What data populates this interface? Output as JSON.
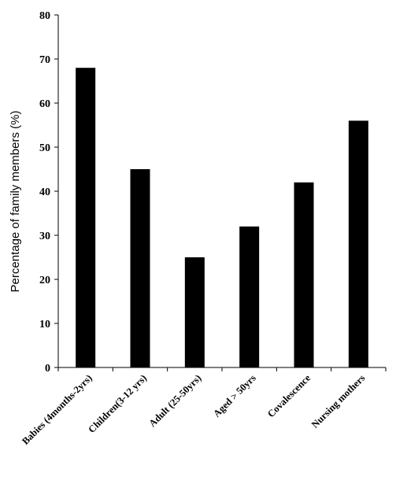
{
  "chart_data": {
    "type": "bar",
    "title": "",
    "xlabel": "",
    "ylabel": "Percentage of family members (%)",
    "ylim": [
      0,
      80
    ],
    "yticks": [
      0,
      10,
      20,
      30,
      40,
      50,
      60,
      70,
      80
    ],
    "categories": [
      "Babies (4months-2yrs)",
      "Children(3-12 yrs)",
      "Adult (25-50yrs)",
      "Aged > 50yrs",
      "Covalescence",
      "Nursing mothers"
    ],
    "values": [
      68,
      45,
      25,
      32,
      42,
      56
    ],
    "bar_color": "#000000",
    "grid": false,
    "legend": "none"
  }
}
